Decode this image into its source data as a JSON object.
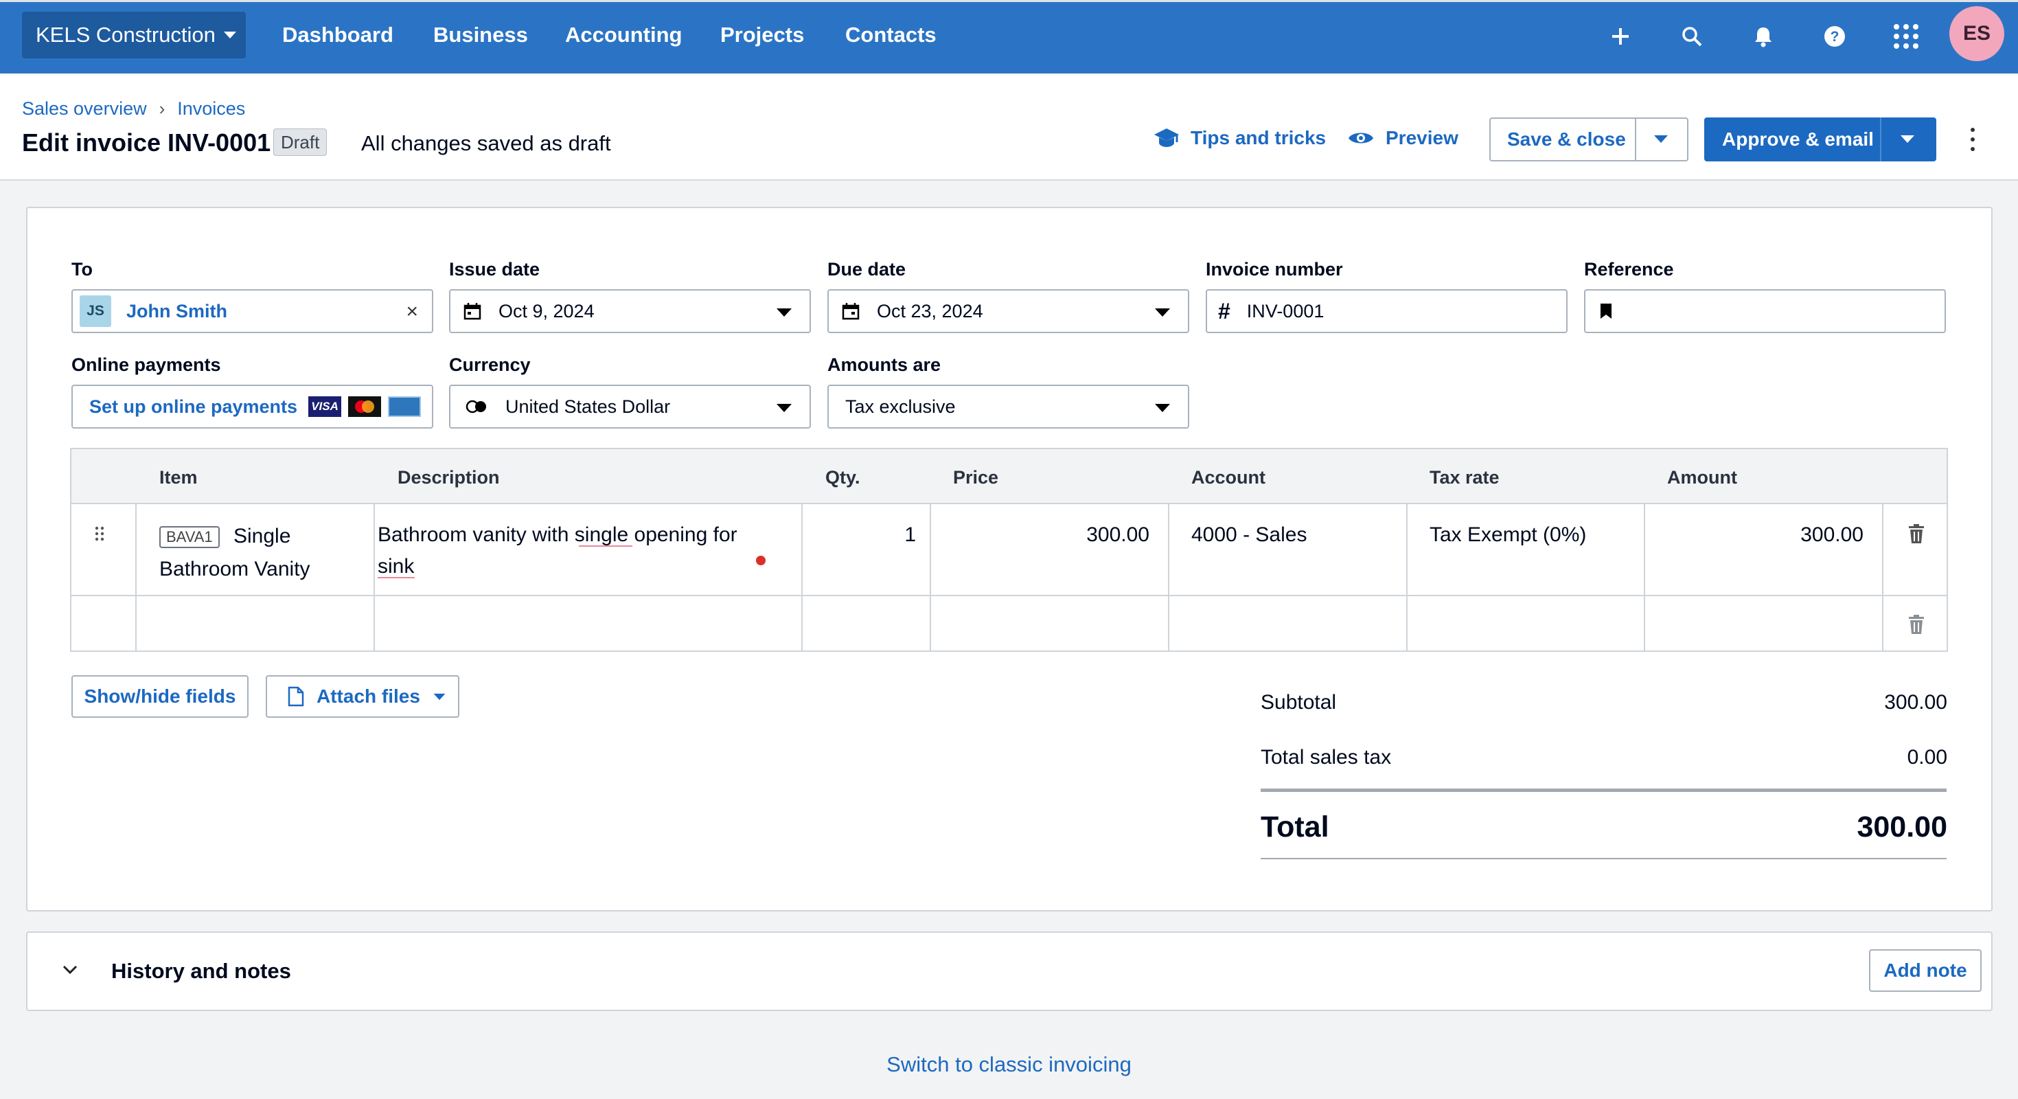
{
  "topnav": {
    "org_name": "KELS Construction",
    "links": [
      "Dashboard",
      "Business",
      "Accounting",
      "Projects",
      "Contacts"
    ],
    "icons": [
      "plus-icon",
      "search-icon",
      "bell-icon",
      "help-icon",
      "apps-grid-icon"
    ],
    "user_initials": "ES"
  },
  "breadcrumb": [
    "Sales overview",
    "Invoices"
  ],
  "header": {
    "title": "Edit invoice INV-0001",
    "status": "Draft",
    "saved_status": "All changes saved as draft",
    "tips": "Tips and tricks",
    "preview": "Preview",
    "save_close": "Save & close",
    "approve_email": "Approve & email"
  },
  "form": {
    "to_label": "To",
    "contact_initials": "JS",
    "contact_name": "John Smith",
    "issue_date_label": "Issue date",
    "issue_date": "Oct 9, 2024",
    "due_date_label": "Due date",
    "due_date": "Oct 23, 2024",
    "invoice_number_label": "Invoice number",
    "invoice_number": "INV-0001",
    "reference_label": "Reference",
    "reference": "",
    "online_payments_label": "Online payments",
    "online_payments_link": "Set up online payments",
    "currency_label": "Currency",
    "currency": "United States Dollar",
    "amounts_are_label": "Amounts are",
    "amounts_are": "Tax exclusive"
  },
  "table": {
    "headers": [
      "Item",
      "Description",
      "Qty.",
      "Price",
      "Account",
      "Tax rate",
      "Amount"
    ],
    "rows": [
      {
        "item_code": "BAVA1",
        "item_name_1": "Single",
        "item_name_2": "Bathroom Vanity",
        "description_1": "Bathroom vanity with single opening for",
        "description_2": "sink",
        "qty": "1",
        "price": "300.00",
        "account": "4000 - Sales",
        "tax_rate": "Tax Exempt (0%)",
        "amount": "300.00"
      }
    ]
  },
  "actions": {
    "show_hide": "Show/hide fields",
    "attach": "Attach files"
  },
  "summary": {
    "subtotal_label": "Subtotal",
    "subtotal": "300.00",
    "tax_label": "Total sales tax",
    "tax": "0.00",
    "total_label": "Total",
    "total": "300.00"
  },
  "history": {
    "title": "History and notes",
    "add_note": "Add note"
  },
  "footer": {
    "classic_link": "Switch to classic invoicing"
  },
  "colors": {
    "nav_bg": "#2b74c5",
    "org_bg": "#1d5a9e",
    "primary": "#1c69c1",
    "avatar": "#f2a7bc"
  }
}
